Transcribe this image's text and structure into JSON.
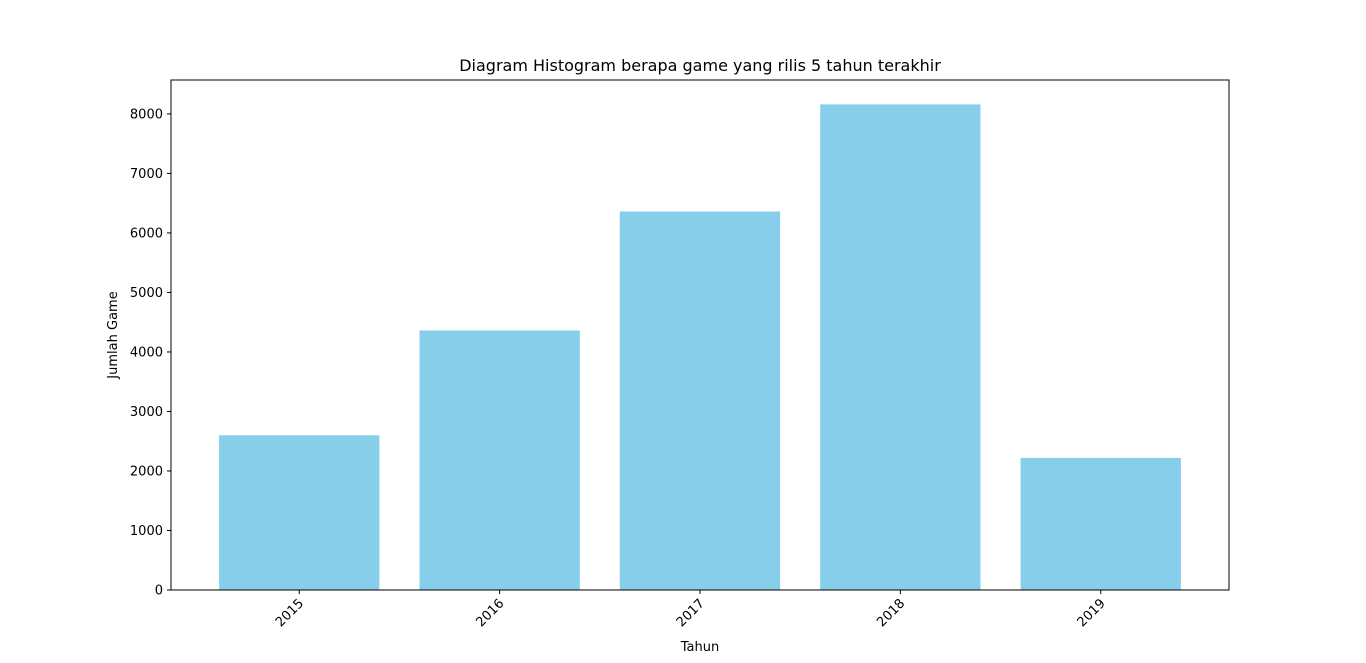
{
  "chart_data": {
    "type": "bar",
    "title": "Diagram Histogram berapa game yang rilis 5 tahun terakhir",
    "xlabel": "Tahun",
    "ylabel": "Jumlah Game",
    "categories": [
      "2015",
      "2016",
      "2017",
      "2018",
      "2019"
    ],
    "values": [
      2600,
      4360,
      6360,
      8160,
      2220
    ],
    "ylim": [
      0,
      8570
    ],
    "yticks": [
      0,
      1000,
      2000,
      3000,
      4000,
      5000,
      6000,
      7000,
      8000
    ],
    "bar_color": "#87ceeb",
    "grid": false,
    "legend": "none",
    "xtick_rotation": 45
  }
}
